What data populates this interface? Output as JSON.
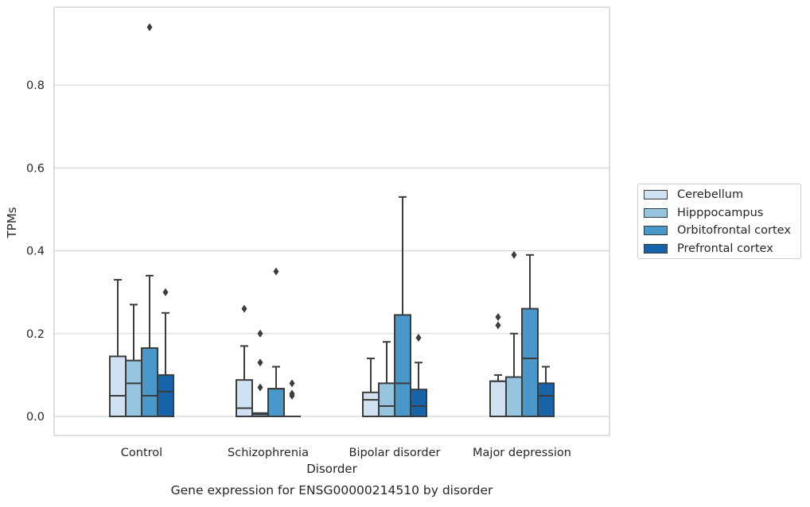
{
  "chart_data": {
    "type": "box",
    "title": "Gene expression for ENSG00000214510 by disorder",
    "xlabel": "Disorder",
    "ylabel": "TPMs",
    "ylim": [
      -0.045,
      0.99
    ],
    "yticks": [
      0.0,
      0.2,
      0.4,
      0.6,
      0.8
    ],
    "ytick_labels": [
      "0.0",
      "0.2",
      "0.4",
      "0.6",
      "0.8"
    ],
    "grid": "horizontal",
    "legend_position": "right",
    "categories": [
      "Control",
      "Schizophrenia",
      "Bipolar disorder",
      "Major depression"
    ],
    "series": [
      {
        "name": "Cerebellum",
        "color": "#d0e1f2",
        "boxes": [
          {
            "q1": 0.0,
            "median": 0.05,
            "q3": 0.145,
            "whisker_low": 0.0,
            "whisker_high": 0.33,
            "outliers": []
          },
          {
            "q1": 0.0,
            "median": 0.02,
            "q3": 0.088,
            "whisker_low": 0.0,
            "whisker_high": 0.17,
            "outliers": [
              0.26
            ]
          },
          {
            "q1": 0.0,
            "median": 0.04,
            "q3": 0.058,
            "whisker_low": 0.0,
            "whisker_high": 0.14,
            "outliers": []
          },
          {
            "q1": 0.0,
            "median": 0.085,
            "q3": 0.085,
            "whisker_low": 0.0,
            "whisker_high": 0.1,
            "outliers": [
              0.22,
              0.24
            ]
          }
        ]
      },
      {
        "name": "Hipppocampus",
        "color": "#94c4df",
        "boxes": [
          {
            "q1": 0.0,
            "median": 0.08,
            "q3": 0.135,
            "whisker_low": 0.0,
            "whisker_high": 0.27,
            "outliers": []
          },
          {
            "q1": 0.0,
            "median": 0.005,
            "q3": 0.008,
            "whisker_low": 0.0,
            "whisker_high": 0.008,
            "outliers": [
              0.07,
              0.13,
              0.2
            ]
          },
          {
            "q1": 0.0,
            "median": 0.025,
            "q3": 0.08,
            "whisker_low": 0.0,
            "whisker_high": 0.18,
            "outliers": []
          },
          {
            "q1": 0.0,
            "median": 0.095,
            "q3": 0.095,
            "whisker_low": 0.0,
            "whisker_high": 0.2,
            "outliers": [
              0.39
            ]
          }
        ]
      },
      {
        "name": "Orbitofrontal cortex",
        "color": "#4a98c9",
        "boxes": [
          {
            "q1": 0.0,
            "median": 0.05,
            "q3": 0.165,
            "whisker_low": 0.0,
            "whisker_high": 0.34,
            "outliers": [
              0.94
            ]
          },
          {
            "q1": 0.0,
            "median": 0.067,
            "q3": 0.067,
            "whisker_low": 0.0,
            "whisker_high": 0.12,
            "outliers": [
              0.35
            ]
          },
          {
            "q1": 0.0,
            "median": 0.08,
            "q3": 0.245,
            "whisker_low": 0.0,
            "whisker_high": 0.53,
            "outliers": []
          },
          {
            "q1": 0.0,
            "median": 0.14,
            "q3": 0.26,
            "whisker_low": 0.0,
            "whisker_high": 0.39,
            "outliers": []
          }
        ]
      },
      {
        "name": "Prefrontal cortex",
        "color": "#1764ab",
        "boxes": [
          {
            "q1": 0.0,
            "median": 0.06,
            "q3": 0.1,
            "whisker_low": 0.0,
            "whisker_high": 0.25,
            "outliers": [
              0.3
            ]
          },
          {
            "q1": 0.0,
            "median": 0.0,
            "q3": 0.0,
            "whisker_low": 0.0,
            "whisker_high": 0.0,
            "outliers": [
              0.05,
              0.055,
              0.08
            ]
          },
          {
            "q1": 0.0,
            "median": 0.025,
            "q3": 0.065,
            "whisker_low": 0.0,
            "whisker_high": 0.13,
            "outliers": [
              0.19
            ]
          },
          {
            "q1": 0.0,
            "median": 0.05,
            "q3": 0.08,
            "whisker_low": 0.0,
            "whisker_high": 0.12,
            "outliers": []
          }
        ]
      }
    ]
  }
}
